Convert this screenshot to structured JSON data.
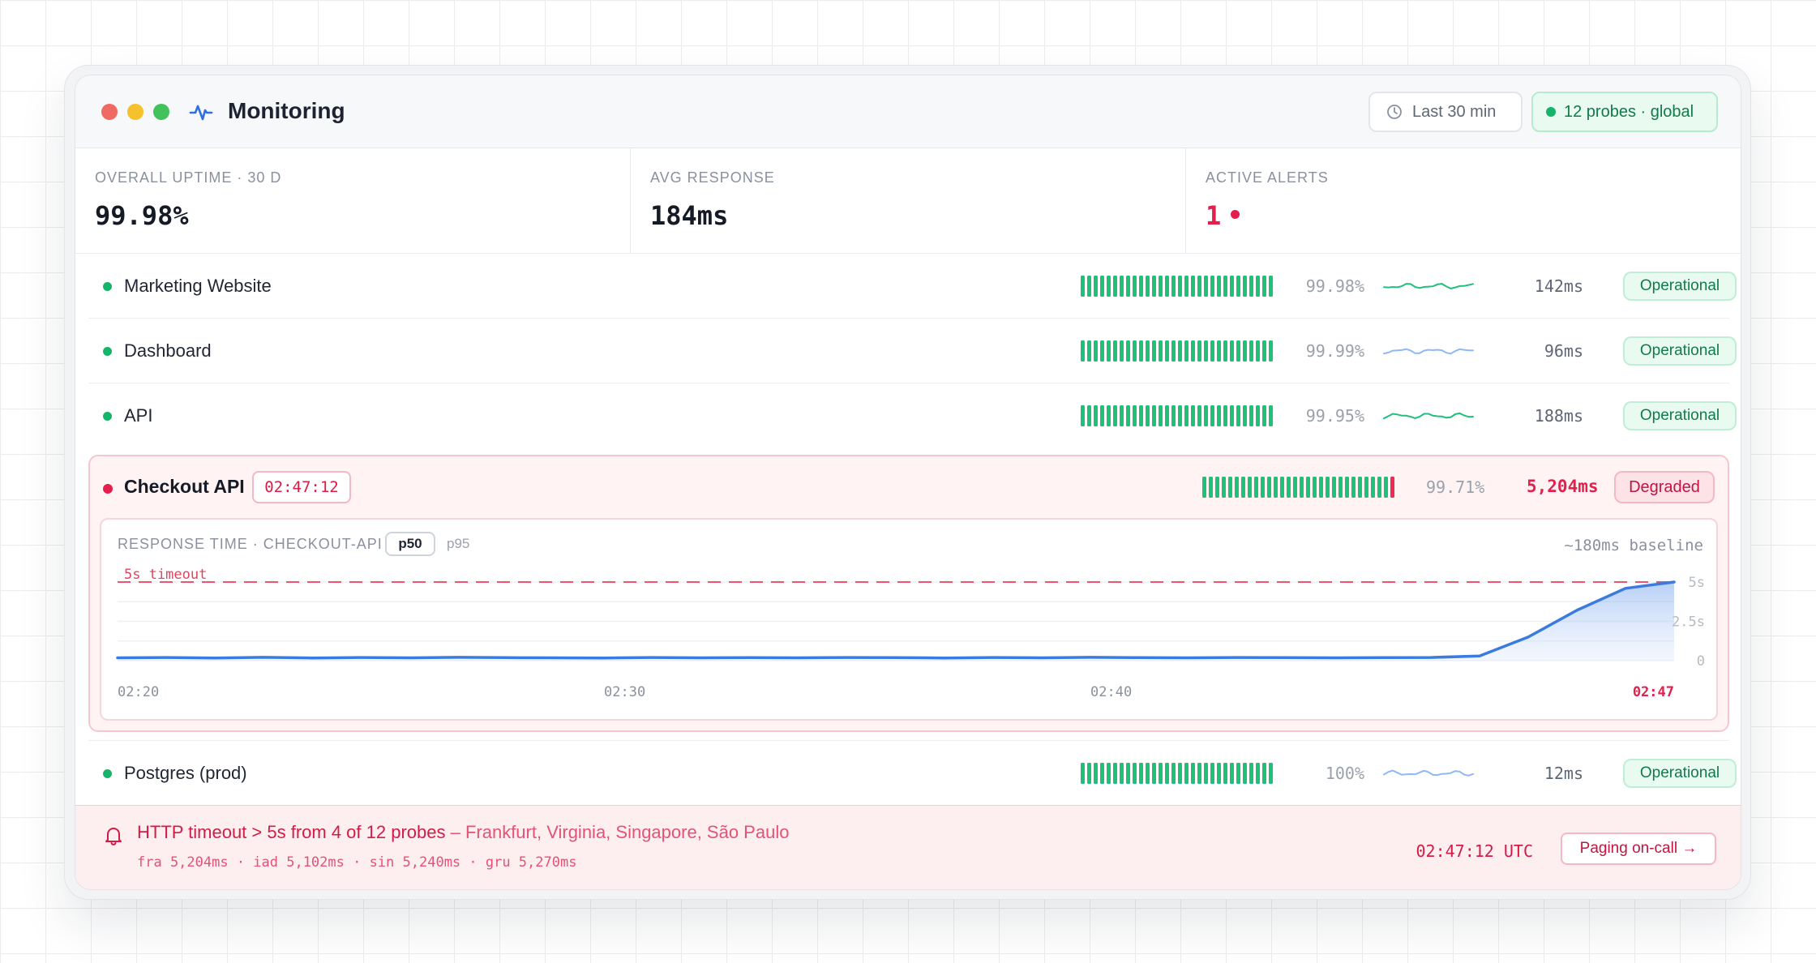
{
  "window": {
    "title": "Monitoring",
    "time_range": "Last 30 min",
    "probes": "12 probes · global"
  },
  "stats": [
    {
      "label": "OVERALL UPTIME · 30 D",
      "value": "99.98%"
    },
    {
      "label": "AVG RESPONSE",
      "value": "184ms"
    },
    {
      "label": "ACTIVE ALERTS",
      "value": "1"
    }
  ],
  "services": [
    {
      "name": "Marketing Website",
      "uptime": "99.98%",
      "response": "142ms",
      "status": "Operational",
      "spark_color": "#21c07a"
    },
    {
      "name": "Dashboard",
      "uptime": "99.99%",
      "response": "96ms",
      "status": "Operational",
      "spark_color": "#8fb8f5"
    },
    {
      "name": "API",
      "uptime": "99.95%",
      "response": "188ms",
      "status": "Operational",
      "spark_color": "#21c07a"
    },
    {
      "name": "Postgres (prod)",
      "uptime": "100%",
      "response": "12ms",
      "status": "Operational",
      "spark_color": "#8fb8f5"
    }
  ],
  "incident": {
    "name": "Checkout API",
    "timer": "02:47:12",
    "uptime": "99.71%",
    "response": "5,204ms",
    "status": "Degraded",
    "chart": {
      "title": "RESPONSE TIME · CHECKOUT-API",
      "tab_active": "p50",
      "tab_other": "p95",
      "baseline_label": "~180ms baseline",
      "timeout_label": "5s timeout"
    }
  },
  "chart_data": {
    "type": "area",
    "title": "RESPONSE TIME · CHECKOUT-API",
    "x_tick_labels": [
      "02:20",
      "02:30",
      "02:40",
      "02:47"
    ],
    "y_tick_labels": [
      "5s",
      "2.5s",
      "0"
    ],
    "ylim": [
      0,
      5
    ],
    "threshold": {
      "label": "5s timeout",
      "value": 5
    },
    "series": [
      {
        "x": [
          0,
          2,
          4,
          6,
          8,
          10,
          12,
          14,
          16,
          18,
          20,
          22,
          24,
          26,
          28,
          30,
          32,
          34,
          36,
          38,
          40,
          42,
          44,
          46,
          48,
          50,
          52,
          54,
          56,
          58,
          60,
          62,
          64
        ],
        "values": [
          0.18,
          0.2,
          0.17,
          0.21,
          0.17,
          0.2,
          0.18,
          0.21,
          0.19,
          0.18,
          0.17,
          0.2,
          0.18,
          0.19,
          0.18,
          0.2,
          0.19,
          0.17,
          0.2,
          0.18,
          0.21,
          0.19,
          0.18,
          0.2,
          0.19,
          0.18,
          0.19,
          0.2,
          0.3,
          1.5,
          3.2,
          4.6,
          5.0
        ]
      }
    ]
  },
  "alert": {
    "message": "HTTP timeout > 5s from 4 of 12 probes",
    "regions": " – Frankfurt, Virginia, Singapore, São Paulo",
    "detail": "fra 5,204ms · iad 5,102ms · sin 5,240ms · gru 5,270ms",
    "time": "02:47:12 UTC",
    "action": "Paging on-call →"
  },
  "colors": {
    "operational": "#16b46a",
    "degraded": "#e21f4d",
    "chart_line": "#3b7be0",
    "timeout_line": "#ee5470"
  }
}
